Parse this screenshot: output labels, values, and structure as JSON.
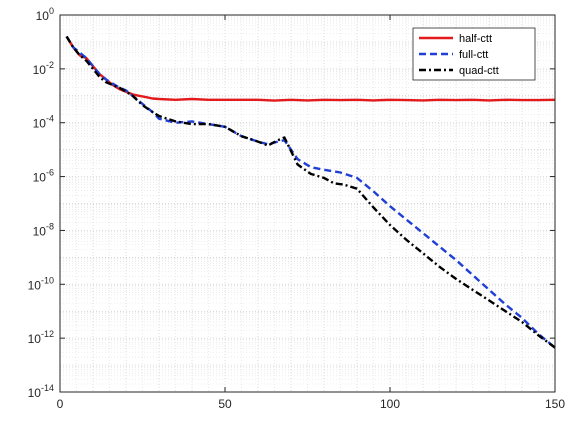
{
  "chart_data": {
    "type": "line",
    "title": "",
    "xlabel": "",
    "ylabel": "",
    "xlim": [
      0,
      150
    ],
    "ylim_log10": [
      -14,
      0
    ],
    "yscale": "log",
    "grid": "major and minor, dotted",
    "legend_position": "top-right",
    "x_ticks": [
      0,
      50,
      100,
      150
    ],
    "x_tick_labels": [
      "0",
      "50",
      "100",
      "150"
    ],
    "y_tick_exponents": [
      0,
      -2,
      -4,
      -6,
      -8,
      -10,
      -12,
      -14
    ],
    "y_tick_base": "10",
    "y_tick_exponent_labels": [
      "0",
      "-2",
      "-4",
      "-6",
      "-8",
      "-10",
      "-12",
      "-14"
    ],
    "series": [
      {
        "name": "half-ctt",
        "color": "#e31a1c",
        "style": "solid",
        "x": [
          2,
          4,
          6,
          8,
          10,
          12,
          14,
          16,
          18,
          20,
          22,
          24,
          26,
          28,
          30,
          35,
          40,
          45,
          50,
          55,
          60,
          65,
          70,
          75,
          80,
          85,
          90,
          95,
          100,
          105,
          110,
          115,
          120,
          125,
          130,
          135,
          140,
          145,
          150
        ],
        "log10_y": [
          -0.8,
          -1.2,
          -1.5,
          -1.6,
          -1.9,
          -2.2,
          -2.4,
          -2.6,
          -2.75,
          -2.85,
          -2.95,
          -3.0,
          -3.05,
          -3.1,
          -3.12,
          -3.15,
          -3.12,
          -3.15,
          -3.15,
          -3.15,
          -3.15,
          -3.18,
          -3.15,
          -3.17,
          -3.15,
          -3.16,
          -3.15,
          -3.17,
          -3.15,
          -3.16,
          -3.17,
          -3.15,
          -3.16,
          -3.15,
          -3.17,
          -3.15,
          -3.16,
          -3.16,
          -3.15
        ]
      },
      {
        "name": "full-ctt",
        "color": "#1f3fd6",
        "style": "dashed",
        "x": [
          2,
          4,
          6,
          8,
          10,
          12,
          14,
          16,
          18,
          20,
          22,
          25,
          28,
          30,
          35,
          40,
          45,
          50,
          55,
          60,
          63,
          66,
          68,
          72,
          76,
          80,
          85,
          90,
          95,
          100,
          105,
          110,
          115,
          120,
          125,
          130,
          135,
          140,
          145,
          150
        ],
        "log10_y": [
          -0.8,
          -1.2,
          -1.4,
          -1.6,
          -1.9,
          -2.2,
          -2.4,
          -2.55,
          -2.7,
          -2.8,
          -3.0,
          -3.3,
          -3.6,
          -3.85,
          -4.0,
          -3.95,
          -4.05,
          -4.15,
          -4.5,
          -4.7,
          -4.8,
          -4.7,
          -4.65,
          -5.35,
          -5.65,
          -5.75,
          -5.85,
          -6.05,
          -6.55,
          -7.1,
          -7.6,
          -8.1,
          -8.6,
          -9.1,
          -9.65,
          -10.2,
          -10.75,
          -11.25,
          -11.85,
          -12.35
        ]
      },
      {
        "name": "quad-ctt",
        "color": "#000000",
        "style": "dashdot",
        "x": [
          2,
          4,
          6,
          8,
          10,
          12,
          14,
          16,
          18,
          20,
          22,
          25,
          28,
          30,
          35,
          40,
          45,
          50,
          55,
          60,
          63,
          66,
          68,
          72,
          76,
          80,
          83,
          86,
          90,
          95,
          100,
          105,
          110,
          115,
          120,
          125,
          130,
          135,
          140,
          145,
          150
        ],
        "log10_y": [
          -0.8,
          -1.2,
          -1.5,
          -1.7,
          -2.0,
          -2.3,
          -2.5,
          -2.6,
          -2.7,
          -2.85,
          -3.0,
          -3.35,
          -3.6,
          -3.75,
          -3.95,
          -4.05,
          -4.05,
          -4.15,
          -4.5,
          -4.7,
          -4.85,
          -4.65,
          -4.55,
          -5.55,
          -5.9,
          -6.05,
          -6.25,
          -6.3,
          -6.45,
          -7.15,
          -7.8,
          -8.35,
          -8.85,
          -9.35,
          -9.8,
          -10.2,
          -10.6,
          -11.0,
          -11.4,
          -11.9,
          -12.35
        ]
      }
    ]
  }
}
